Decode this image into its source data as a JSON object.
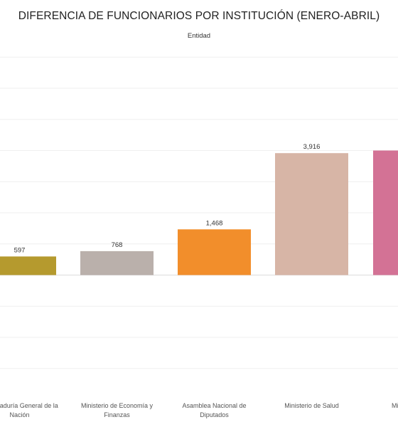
{
  "chart_data": {
    "type": "bar",
    "title": "DIFERENCIA DE FUNCIONARIOS POR INSTITUCIÓN (ENERO-ABRIL)",
    "subtitle": "Entidad",
    "categories": [
      [
        "Procuraduría General de la",
        "Nación"
      ],
      [
        "Ministerio de Economía y",
        "Finanzas"
      ],
      [
        "Asamblea Nacional de",
        "Diputados"
      ],
      [
        "Ministerio de Salud"
      ],
      [
        "Ministerio de"
      ]
    ],
    "values": [
      597,
      768,
      1468,
      3916,
      4000
    ],
    "value_labels": [
      "597",
      "768",
      "1,468",
      "3,916",
      ""
    ],
    "colors": [
      "#b59a2e",
      "#bab0ab",
      "#f28e2b",
      "#d7b5a6",
      "#d37295"
    ],
    "ylim": [
      -4000,
      7000
    ],
    "gridline_step": 1000,
    "grid": true
  }
}
